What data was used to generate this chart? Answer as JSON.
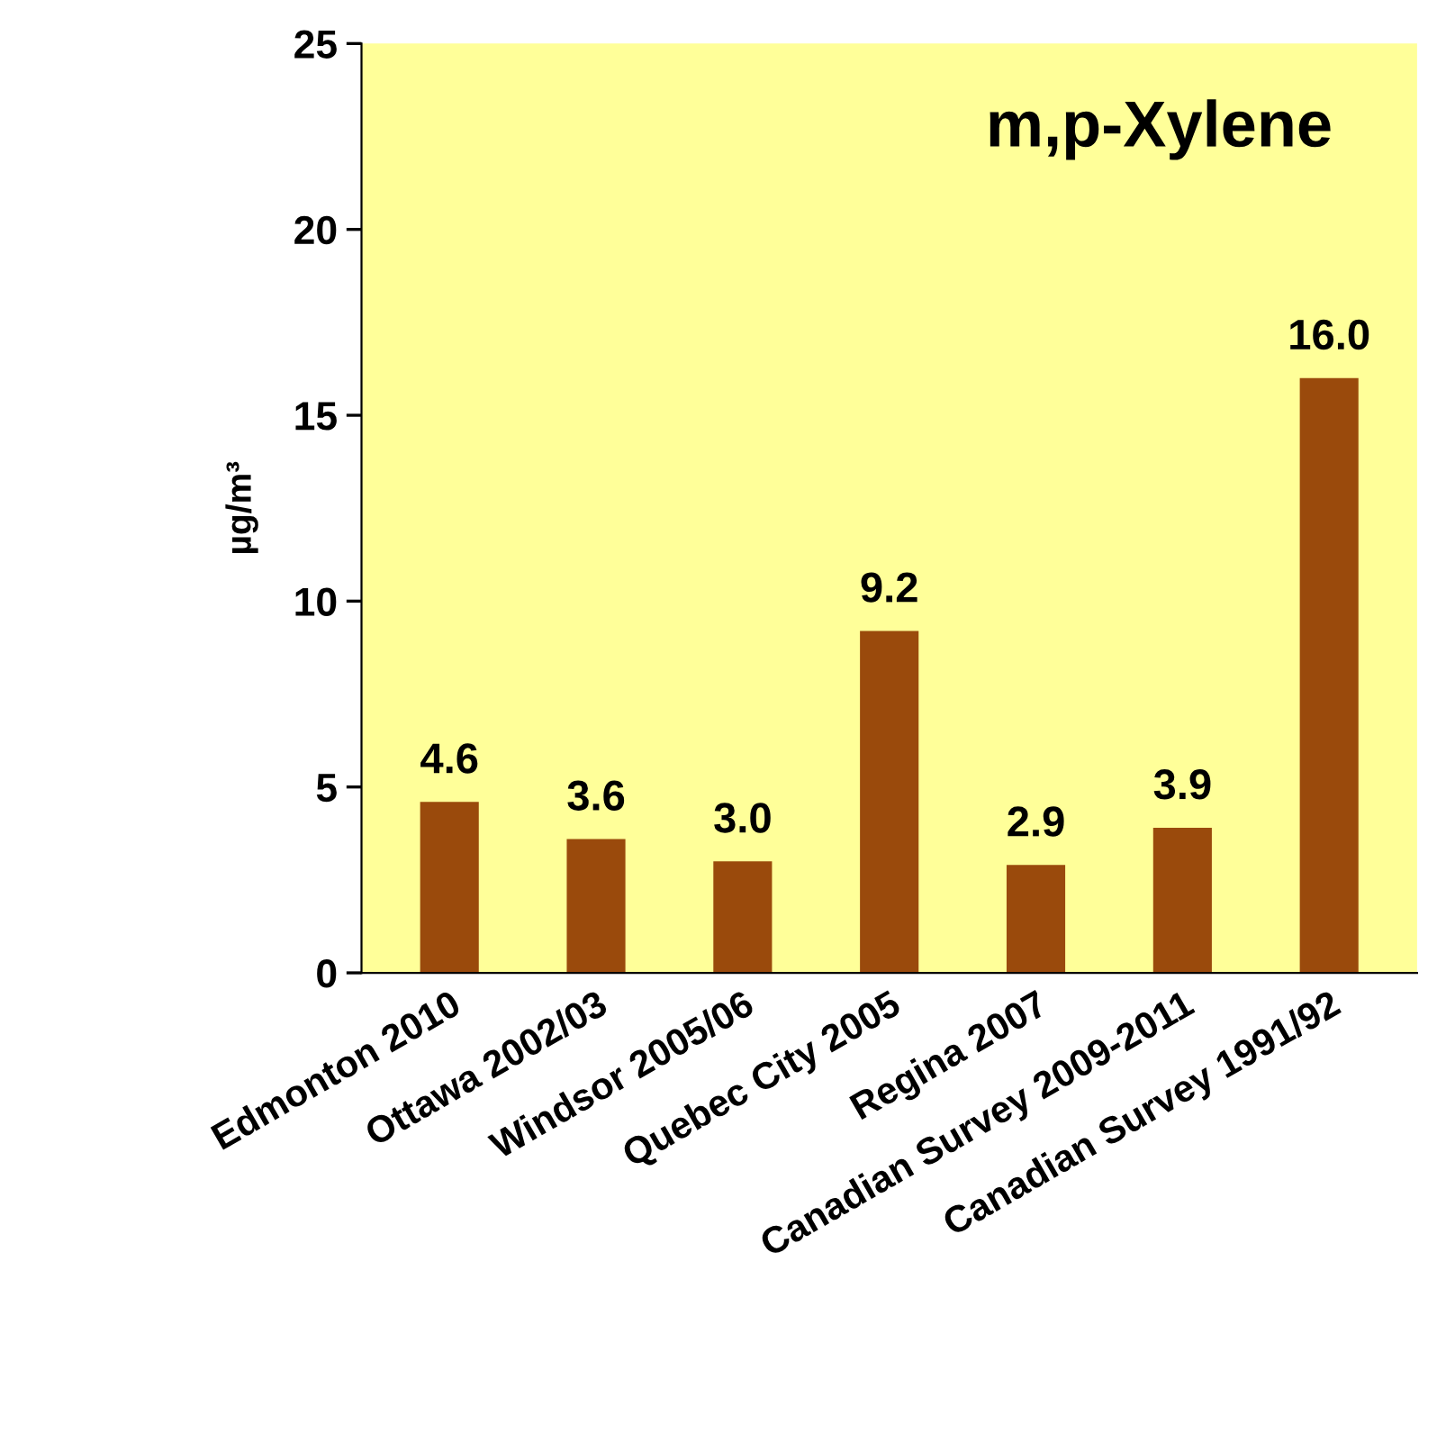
{
  "chart_data": {
    "type": "bar",
    "title": "m,p-Xylene",
    "ylabel": "µg/m³",
    "categories": [
      "Edmonton 2010",
      "Ottawa 2002/03",
      "Windsor 2005/06",
      "Quebec City 2005",
      "Regina 2007",
      "Canadian Survey 2009-2011",
      "Canadian Survey 1991/92"
    ],
    "values": [
      4.6,
      3.6,
      3.0,
      9.2,
      2.9,
      3.9,
      16.0
    ],
    "value_labels": [
      "4.6",
      "3.6",
      "3.0",
      "9.2",
      "2.9",
      "3.9",
      "16.0"
    ],
    "color": "#9a4a0c",
    "ylim": [
      0,
      25
    ],
    "yticks": [
      0,
      5,
      10,
      15,
      20,
      25
    ],
    "grid": false,
    "legend": false
  }
}
